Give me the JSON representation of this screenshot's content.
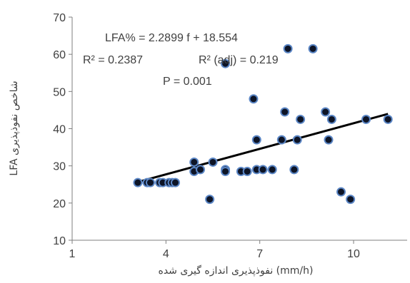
{
  "chart_data": {
    "type": "scatter",
    "title": "",
    "xlabel": "نفوذپذیری اندازه گیری شده (mm/h)",
    "ylabel": "LFA شاخص نفوذپذیری",
    "xlim": [
      1,
      12
    ],
    "ylim": [
      10,
      70
    ],
    "x_ticks": [
      1,
      4,
      7,
      10
    ],
    "y_ticks": [
      10,
      20,
      30,
      40,
      50,
      60,
      70
    ],
    "grid": false,
    "equation": "LFA% = 2.2899 f + 18.554",
    "r2": "R² = 0.2387",
    "r2_adj": "R² (adj) = 0.219",
    "p_value": "P = 0.001",
    "trendline": {
      "slope": 2.2899,
      "intercept": 18.554,
      "x_start": 3.1,
      "x_end": 11.1
    },
    "marker_color": "#0d1426",
    "marker_edge": "#5b86c5",
    "points": [
      [
        3.1,
        25.5
      ],
      [
        3.4,
        25.5
      ],
      [
        3.5,
        25.5
      ],
      [
        3.8,
        25.5
      ],
      [
        3.9,
        25.5
      ],
      [
        4.1,
        25.5
      ],
      [
        4.2,
        25.5
      ],
      [
        4.3,
        25.5
      ],
      [
        4.9,
        28.5
      ],
      [
        4.9,
        31
      ],
      [
        5.1,
        29
      ],
      [
        5.4,
        21
      ],
      [
        5.5,
        31
      ],
      [
        5.9,
        29
      ],
      [
        5.9,
        28.5
      ],
      [
        5.9,
        57.5
      ],
      [
        6.4,
        28.5
      ],
      [
        6.6,
        28.5
      ],
      [
        6.8,
        48
      ],
      [
        6.9,
        37
      ],
      [
        6.9,
        29
      ],
      [
        7.1,
        29
      ],
      [
        7.4,
        29
      ],
      [
        7.7,
        37
      ],
      [
        7.8,
        44.5
      ],
      [
        7.9,
        61.5
      ],
      [
        8.1,
        29
      ],
      [
        8.2,
        37
      ],
      [
        8.3,
        42.5
      ],
      [
        8.7,
        61.5
      ],
      [
        9.1,
        44.5
      ],
      [
        9.2,
        37
      ],
      [
        9.3,
        42.5
      ],
      [
        9.6,
        23
      ],
      [
        9.9,
        21
      ],
      [
        10.4,
        42.5
      ],
      [
        11.1,
        42.5
      ]
    ]
  }
}
